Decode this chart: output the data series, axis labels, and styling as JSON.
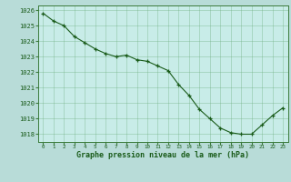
{
  "x": [
    0,
    1,
    2,
    3,
    4,
    5,
    6,
    7,
    8,
    9,
    10,
    11,
    12,
    13,
    14,
    15,
    16,
    17,
    18,
    19,
    20,
    21,
    22,
    23
  ],
  "y": [
    1025.8,
    1025.3,
    1025.0,
    1024.3,
    1023.9,
    1023.5,
    1023.2,
    1023.0,
    1023.1,
    1022.8,
    1022.7,
    1022.4,
    1022.1,
    1021.2,
    1020.5,
    1019.6,
    1019.0,
    1018.4,
    1018.1,
    1018.0,
    1018.0,
    1018.6,
    1019.2,
    1019.7
  ],
  "line_color": "#1a5c1a",
  "marker_color": "#1a5c1a",
  "bg_color": "#b8dcd8",
  "grid_color": "#6aaa7a",
  "plot_bg": "#c8ece8",
  "xlabel": "Graphe pression niveau de la mer (hPa)",
  "xlabel_color": "#1a5c1a",
  "tick_color": "#1a5c1a",
  "ylim": [
    1017.5,
    1026.3
  ],
  "xlim": [
    -0.5,
    23.5
  ],
  "yticks": [
    1018,
    1019,
    1020,
    1021,
    1022,
    1023,
    1024,
    1025,
    1026
  ],
  "xticks": [
    0,
    1,
    2,
    3,
    4,
    5,
    6,
    7,
    8,
    9,
    10,
    11,
    12,
    13,
    14,
    15,
    16,
    17,
    18,
    19,
    20,
    21,
    22,
    23
  ],
  "spine_color": "#3a7a3a",
  "figsize": [
    3.2,
    2.0
  ],
  "dpi": 100
}
